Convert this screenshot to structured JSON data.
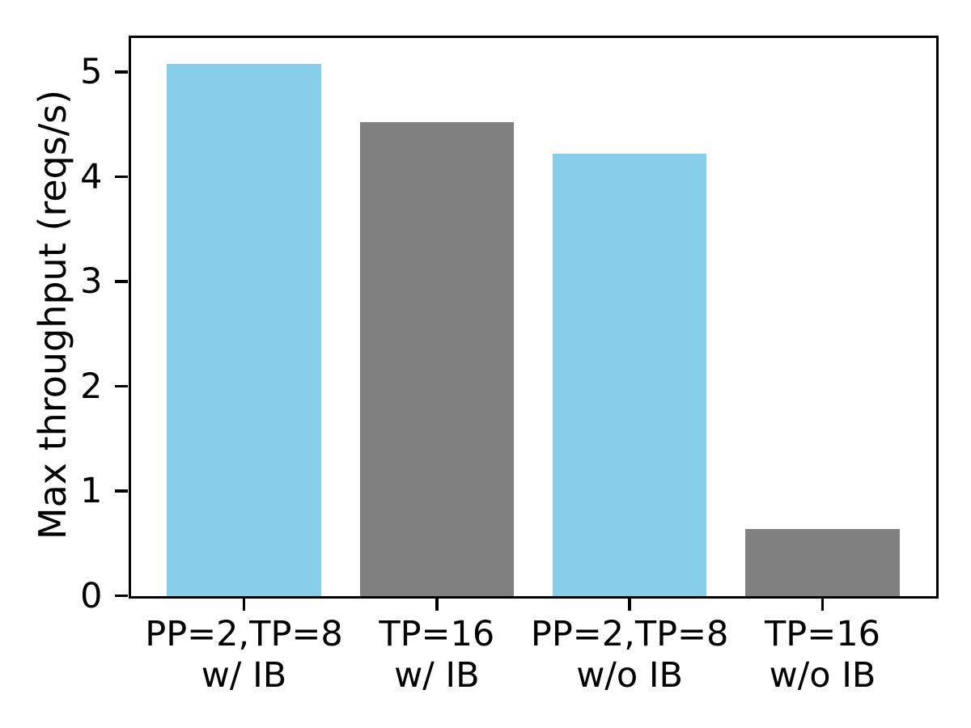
{
  "chart_data": {
    "type": "bar",
    "title": "",
    "xlabel": "",
    "ylabel": "Max throughput (reqs/s)",
    "categories": [
      {
        "line1": "PP=2,TP=8",
        "line2": "w/ IB"
      },
      {
        "line1": "TP=16",
        "line2": "w/ IB"
      },
      {
        "line1": "PP=2,TP=8",
        "line2": "w/o IB"
      },
      {
        "line1": "TP=16",
        "line2": "w/o IB"
      }
    ],
    "values": [
      5.08,
      4.52,
      4.22,
      0.64
    ],
    "bar_colors": [
      "#87ceeb",
      "#808080",
      "#87ceeb",
      "#808080"
    ],
    "yticks": [
      0,
      1,
      2,
      3,
      4,
      5
    ],
    "ylim": [
      0,
      5.33
    ],
    "grid": false,
    "legend_position": "none",
    "colors": {
      "bar_blue": "#87ceeb",
      "bar_gray": "#808080",
      "axis": "#000000",
      "background": "#ffffff"
    }
  }
}
